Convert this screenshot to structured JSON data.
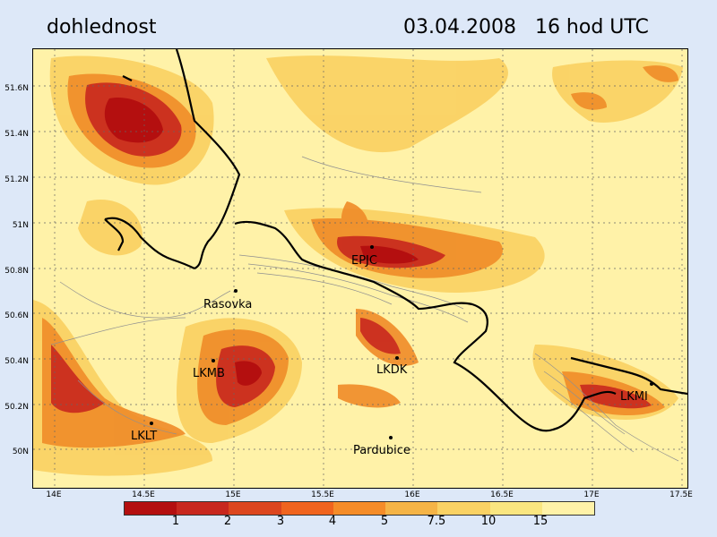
{
  "header": {
    "title": "dohlednost",
    "datetime": "03.04.2008   16 hod UTC"
  },
  "axes": {
    "lat_labels": [
      "51.6N",
      "51.4N",
      "51.2N",
      "51N",
      "50.8N",
      "50.6N",
      "50.4N",
      "50.2N",
      "50N"
    ],
    "lon_labels": [
      "14E",
      "14.5E",
      "15E",
      "15.5E",
      "16E",
      "16.5E",
      "17E",
      "17.5E"
    ]
  },
  "stations": [
    {
      "name": "EPJC"
    },
    {
      "name": "Rasovka"
    },
    {
      "name": "LKMB"
    },
    {
      "name": "LKDK"
    },
    {
      "name": "LKMI"
    },
    {
      "name": "LKLT"
    },
    {
      "name": "Pardubice"
    }
  ],
  "legend": {
    "labels": [
      "1",
      "2",
      "3",
      "4",
      "5",
      "7.5",
      "10",
      "15"
    ],
    "colors": [
      "#b40f0f",
      "#c8281e",
      "#dc461e",
      "#f0641e",
      "#f58c28",
      "#f5b446",
      "#fad264",
      "#fae680",
      "#fff2a8"
    ]
  },
  "colors": {
    "background": "#fff2a8",
    "border_line": "#000000",
    "contour_line": "#909090"
  }
}
